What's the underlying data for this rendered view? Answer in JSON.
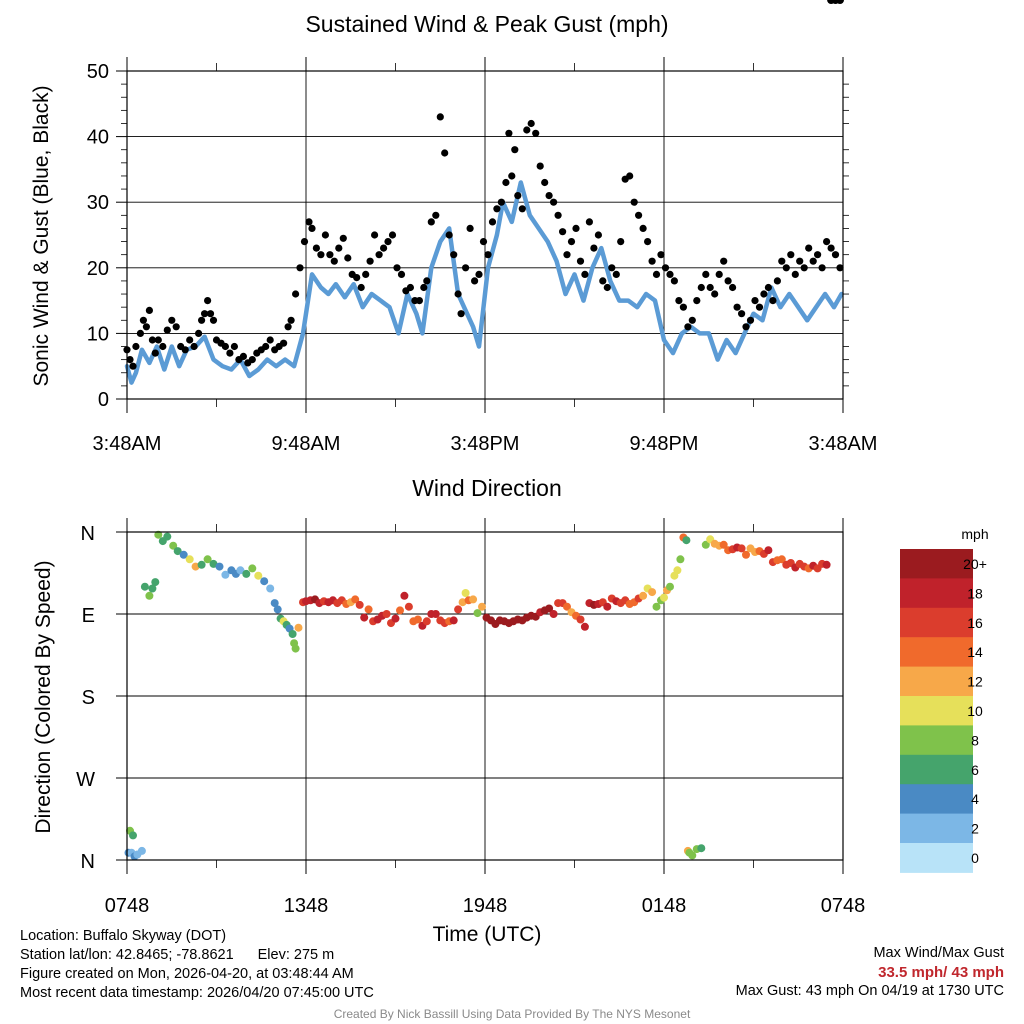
{
  "chart_data": [
    {
      "type": "line",
      "title": "Sustained Wind & Peak Gust (mph)",
      "ylabel": "Sonic Wind & Gust (Blue, Black)",
      "ylim": [
        0,
        50
      ],
      "yticks": [
        0,
        10,
        20,
        30,
        40,
        50
      ],
      "xlim_hours": [
        0,
        24
      ],
      "xticks": [
        "3:48AM",
        "9:48AM",
        "3:48PM",
        "9:48PM",
        "3:48AM"
      ],
      "xtick_hours": [
        0,
        6,
        12,
        18,
        24
      ],
      "grid": true,
      "series": [
        {
          "name": "Sustained Wind",
          "color": "#5b9bd5",
          "x": [
            0,
            0.15,
            0.3,
            0.5,
            0.75,
            1.0,
            1.25,
            1.5,
            1.75,
            2.0,
            2.3,
            2.6,
            2.9,
            3.2,
            3.5,
            3.8,
            4.1,
            4.4,
            4.7,
            5.0,
            5.3,
            5.6,
            5.9,
            6.2,
            6.5,
            6.75,
            7.0,
            7.3,
            7.6,
            7.9,
            8.2,
            8.5,
            8.8,
            9.1,
            9.4,
            9.7,
            9.9,
            10.2,
            10.5,
            10.8,
            11.1,
            11.3,
            11.6,
            11.8,
            12.1,
            12.4,
            12.6,
            12.9,
            13.2,
            13.5,
            13.8,
            14.1,
            14.4,
            14.7,
            15.0,
            15.3,
            15.6,
            15.9,
            16.2,
            16.5,
            16.8,
            17.1,
            17.4,
            17.7,
            18.0,
            18.3,
            18.6,
            18.9,
            19.2,
            19.5,
            19.8,
            20.1,
            20.4,
            20.7,
            21.0,
            21.3,
            21.6,
            21.9,
            22.2,
            22.5,
            22.8,
            23.1,
            23.4,
            23.7,
            23.95
          ],
          "values": [
            5,
            2.5,
            4,
            7.5,
            5.5,
            8,
            4.5,
            8,
            5,
            7.5,
            8,
            9.5,
            6,
            5,
            4.5,
            6,
            3.5,
            4.5,
            6,
            5,
            6,
            5,
            10,
            19,
            17,
            16,
            17.5,
            15.5,
            17.5,
            14,
            16,
            15,
            14,
            10,
            16,
            13,
            10,
            20,
            24,
            26,
            16,
            14,
            11,
            8,
            20,
            25,
            30,
            27,
            33,
            28,
            26,
            24,
            21,
            16,
            19,
            15,
            20,
            23,
            18,
            15,
            15,
            14,
            16,
            15,
            9,
            7,
            10,
            11,
            10,
            10,
            6,
            9,
            7,
            10,
            13,
            12,
            17,
            14,
            16,
            14,
            12,
            14,
            16,
            14,
            16
          ]
        },
        {
          "name": "Peak Gust",
          "color": "#000000",
          "x": [
            0,
            0.1,
            0.2,
            0.3,
            0.45,
            0.55,
            0.65,
            0.75,
            0.85,
            0.95,
            1.05,
            1.2,
            1.35,
            1.5,
            1.65,
            1.8,
            1.95,
            2.1,
            2.25,
            2.4,
            2.5,
            2.6,
            2.7,
            2.8,
            2.9,
            3.0,
            3.15,
            3.3,
            3.45,
            3.6,
            3.75,
            3.9,
            4.05,
            4.2,
            4.35,
            4.5,
            4.65,
            4.8,
            4.95,
            5.1,
            5.25,
            5.4,
            5.5,
            5.65,
            5.8,
            5.95,
            6.1,
            6.2,
            6.35,
            6.5,
            6.65,
            6.8,
            6.95,
            7.1,
            7.25,
            7.4,
            7.55,
            7.7,
            7.85,
            8.0,
            8.15,
            8.3,
            8.45,
            8.6,
            8.75,
            8.9,
            9.05,
            9.2,
            9.35,
            9.5,
            9.65,
            9.8,
            9.95,
            10.05,
            10.2,
            10.35,
            10.5,
            10.65,
            10.8,
            10.95,
            11.1,
            11.2,
            11.35,
            11.5,
            11.65,
            11.8,
            11.95,
            12.1,
            12.25,
            12.4,
            12.55,
            12.7,
            12.8,
            12.9,
            13.0,
            13.1,
            13.25,
            13.4,
            13.55,
            13.7,
            13.85,
            14.0,
            14.15,
            14.3,
            14.45,
            14.6,
            14.75,
            14.9,
            15.05,
            15.2,
            15.35,
            15.5,
            15.65,
            15.8,
            15.95,
            16.1,
            16.25,
            16.4,
            16.55,
            16.7,
            16.85,
            17.0,
            17.15,
            17.3,
            17.45,
            17.6,
            17.75,
            17.9,
            18.05,
            18.2,
            18.35,
            18.5,
            18.65,
            18.8,
            18.95,
            19.1,
            19.25,
            19.4,
            19.55,
            19.7,
            19.85,
            20.0,
            20.15,
            20.3,
            20.45,
            20.6,
            20.75,
            20.9,
            21.05,
            21.2,
            21.35,
            21.5,
            21.65,
            21.8,
            21.95,
            22.1,
            22.25,
            22.4,
            22.55,
            22.7,
            22.85,
            23.0,
            23.15,
            23.3,
            23.45,
            23.6,
            23.75,
            23.9
          ],
          "values": [
            7.5,
            6,
            5,
            8,
            10,
            12,
            11,
            13.5,
            9,
            7,
            9,
            8,
            10.5,
            12,
            11,
            8,
            7.5,
            9,
            8,
            10,
            12,
            13,
            15,
            13,
            12,
            9,
            8.5,
            8,
            7,
            8,
            6,
            6.5,
            5.5,
            6,
            7,
            7.5,
            8,
            9,
            7.5,
            8,
            8.5,
            11,
            12,
            16,
            20,
            24,
            27,
            26,
            23,
            22,
            25,
            22,
            21,
            23,
            24.5,
            21.5,
            19,
            18.5,
            17,
            19,
            21,
            25,
            22,
            23,
            24,
            25,
            20,
            19,
            16.5,
            17,
            15,
            15,
            17,
            18,
            27,
            28,
            43,
            37.5,
            25,
            22,
            16,
            13,
            20,
            26,
            18,
            19,
            24,
            22,
            27,
            29,
            30,
            33,
            40.5,
            34,
            38,
            31,
            29,
            41,
            42,
            40.5,
            35.5,
            33,
            31,
            30,
            28,
            25.5,
            22,
            24,
            26,
            21,
            19,
            27,
            23,
            25,
            18,
            17,
            20,
            19,
            24,
            33.5,
            34,
            30,
            28,
            26,
            24,
            21,
            19,
            22,
            20,
            19,
            18,
            15,
            14,
            11,
            12,
            15,
            17,
            19,
            17,
            16,
            19,
            21,
            18,
            17,
            14,
            13,
            11,
            12,
            15,
            14,
            16,
            17,
            15,
            18,
            21,
            20,
            22,
            19,
            21,
            20,
            23,
            21,
            22,
            20,
            24,
            23,
            22,
            20
          ]
        }
      ]
    },
    {
      "type": "scatter",
      "title": "Wind Direction",
      "ylabel": "Direction (Colored By Speed)",
      "xlabel": "Time (UTC)",
      "yticks": [
        "N",
        "W",
        "S",
        "E",
        "N"
      ],
      "ylim_degrees": [
        0,
        360
      ],
      "xticks": [
        "0748",
        "1348",
        "1948",
        "0148",
        "0748"
      ],
      "xtick_hours": [
        0,
        6,
        12,
        18,
        24
      ],
      "grid": true,
      "colorbar": {
        "title": "mph",
        "labels": [
          "20+",
          "18",
          "16",
          "14",
          "12",
          "10",
          "8",
          "6",
          "4",
          "2",
          "0"
        ],
        "colors": [
          "#9b1b1f",
          "#c0222b",
          "#db3d2d",
          "#f06a2c",
          "#f7a849",
          "#e6e05a",
          "#7fc24b",
          "#45a46c",
          "#4a8ac4",
          "#7cb7e6",
          "#b8e3f8"
        ]
      },
      "points": {
        "t": [
          0.05,
          0.15,
          0.25,
          0.1,
          0.2,
          0.35,
          0.5,
          0.6,
          0.75,
          0.85,
          0.95,
          1.05,
          1.2,
          1.35,
          1.55,
          1.7,
          1.9,
          2.1,
          2.3,
          2.5,
          2.7,
          2.9,
          3.1,
          3.3,
          3.5,
          3.65,
          3.8,
          4.0,
          4.2,
          4.4,
          4.6,
          4.8,
          4.95,
          5.05,
          5.15,
          5.25,
          5.35,
          5.45,
          5.55,
          5.6,
          5.65,
          5.75,
          5.9,
          6.0,
          6.15,
          6.3,
          6.45,
          6.6,
          6.75,
          6.9,
          7.05,
          7.2,
          7.35,
          7.5,
          7.65,
          7.8,
          7.95,
          8.1,
          8.25,
          8.4,
          8.55,
          8.7,
          8.85,
          9.0,
          9.15,
          9.3,
          9.45,
          9.6,
          9.75,
          9.9,
          10.05,
          10.2,
          10.35,
          10.5,
          10.65,
          10.8,
          10.95,
          11.1,
          11.25,
          11.35,
          11.45,
          11.6,
          11.75,
          11.9,
          12.05,
          12.2,
          12.35,
          12.5,
          12.65,
          12.8,
          12.95,
          13.1,
          13.25,
          13.4,
          13.55,
          13.7,
          13.85,
          14.0,
          14.15,
          14.3,
          14.45,
          14.6,
          14.75,
          14.9,
          15.05,
          15.2,
          15.35,
          15.5,
          15.65,
          15.8,
          15.95,
          16.1,
          16.25,
          16.4,
          16.55,
          16.7,
          16.85,
          17.0,
          17.15,
          17.3,
          17.45,
          17.6,
          17.75,
          17.9,
          18.0,
          18.1,
          18.2,
          18.35,
          18.45,
          18.55,
          18.65,
          18.75,
          18.8,
          18.85,
          18.95,
          19.1,
          19.25,
          19.4,
          19.55,
          19.7,
          19.85,
          20.0,
          20.15,
          20.3,
          20.45,
          20.6,
          20.75,
          20.9,
          21.05,
          21.2,
          21.35,
          21.5,
          21.65,
          21.8,
          21.95,
          22.1,
          22.25,
          22.4,
          22.55,
          22.7,
          22.85,
          23.0,
          23.15,
          23.3,
          23.45,
          23.6,
          23.75,
          23.9
        ],
        "deg": [
          8,
          8,
          4,
          32,
          27,
          6,
          10,
          300,
          290,
          298,
          305,
          357,
          350,
          355,
          345,
          339,
          335,
          330,
          322,
          324,
          330,
          325,
          322,
          313,
          318,
          314,
          318,
          314,
          320,
          312,
          306,
          298,
          282,
          275,
          265,
          262,
          258,
          254,
          248,
          238,
          232,
          255,
          283,
          284,
          285,
          286,
          282,
          284,
          283,
          285,
          282,
          285,
          281,
          283,
          286,
          280,
          266,
          275,
          262,
          264,
          268,
          270,
          260,
          265,
          274,
          290,
          278,
          262,
          264,
          257,
          262,
          270,
          270,
          263,
          260,
          262,
          263,
          275,
          283,
          293,
          285,
          286,
          271,
          278,
          266,
          263,
          259,
          263,
          262,
          260,
          262,
          264,
          263,
          266,
          268,
          267,
          272,
          274,
          276,
          270,
          282,
          282,
          278,
          272,
          268,
          264,
          256,
          282,
          280,
          281,
          283,
          278,
          287,
          284,
          282,
          285,
          281,
          283,
          287,
          290,
          298,
          294,
          278,
          285,
          288,
          296,
          300,
          312,
          318,
          330,
          354,
          351,
          10,
          8,
          5,
          12,
          13,
          346,
          352,
          347,
          345,
          346,
          340,
          341,
          343,
          342,
          335,
          342,
          338,
          339,
          336,
          340,
          327,
          329,
          330,
          324,
          326,
          321,
          325,
          322,
          320,
          323,
          320,
          325,
          324
        ],
        "mph": [
          4,
          3,
          5,
          8,
          7,
          3,
          2,
          7,
          8,
          6,
          7,
          8,
          7,
          6,
          8,
          6,
          4,
          10,
          12,
          6,
          8,
          6,
          4,
          3,
          4,
          4,
          3,
          6,
          8,
          10,
          4,
          2,
          5,
          4,
          7,
          10,
          6,
          4,
          7,
          9,
          8,
          12,
          16,
          18,
          19,
          20,
          18,
          17,
          19,
          18,
          16,
          17,
          14,
          12,
          15,
          17,
          18,
          15,
          16,
          18,
          19,
          17,
          16,
          18,
          14,
          18,
          16,
          14,
          15,
          18,
          16,
          19,
          18,
          17,
          16,
          14,
          18,
          16,
          13,
          10,
          14,
          13,
          8,
          12,
          20,
          20,
          21,
          22,
          21,
          20,
          21,
          20,
          20,
          21,
          20,
          20,
          19,
          20,
          21,
          18,
          17,
          16,
          14,
          12,
          14,
          16,
          18,
          19,
          20,
          18,
          17,
          19,
          16,
          18,
          17,
          16,
          15,
          14,
          16,
          13,
          10,
          12,
          8,
          9,
          10,
          12,
          9,
          10,
          11,
          8,
          14,
          6,
          12,
          9,
          8,
          8,
          6,
          8,
          10,
          12,
          13,
          14,
          15,
          16,
          18,
          17,
          14,
          12,
          13,
          15,
          16,
          18,
          16,
          14,
          15,
          16,
          16,
          18,
          16,
          17,
          15,
          18,
          16,
          17,
          18
        ]
      }
    }
  ],
  "info": {
    "location": "Location: Buffalo Skyway (DOT)",
    "latlon": "Station lat/lon: 42.8465; -78.8621",
    "elev": "Elev: 275 m",
    "created": "Figure created on Mon, 2026-04-20, at 03:48:44 AM",
    "recent": "Most recent data timestamp: 2026/04/20 07:45:00 UTC",
    "max_title": "Max Wind/Max Gust",
    "max_values": "33.5 mph/ 43 mph",
    "max_gust": "Max Gust: 43 mph On 04/19 at 1730 UTC",
    "credit": "Created By Nick Bassill Using Data Provided By The NYS Mesonet"
  },
  "colors": {
    "max_values": "#c0272d",
    "credit": "#8a8a8a"
  }
}
